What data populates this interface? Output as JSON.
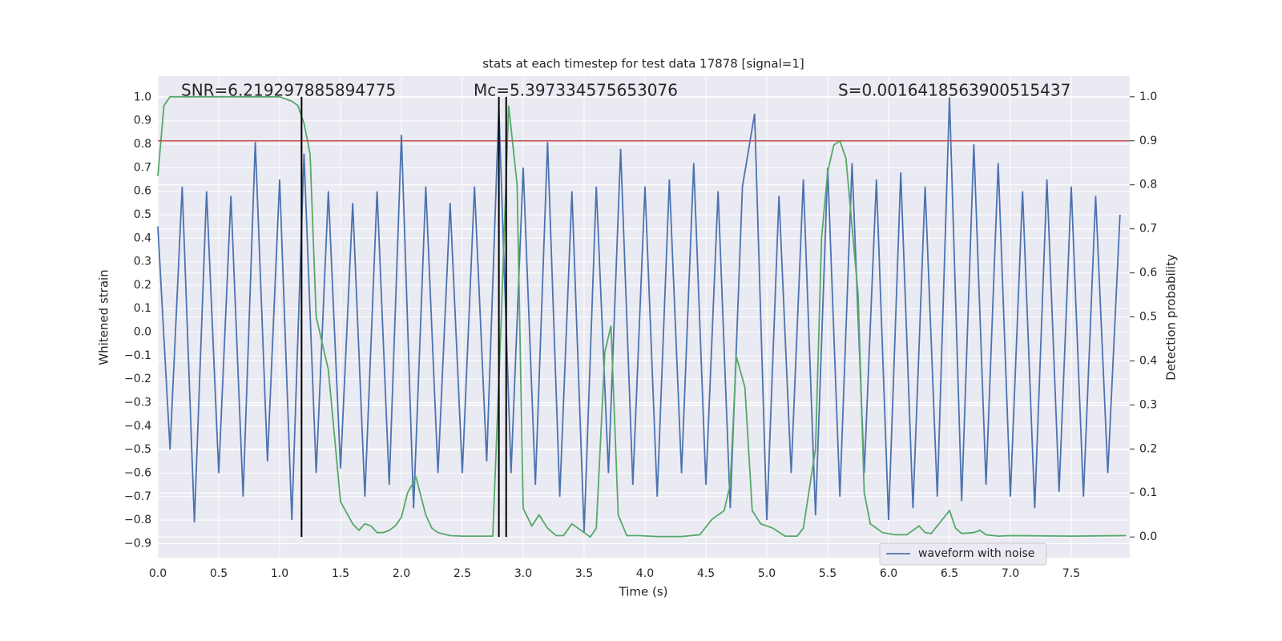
{
  "chart_data": {
    "type": "line",
    "title": "stats at each timestep for test data 17878 [signal=1]",
    "xlabel": "Time (s)",
    "ylabel": "Whitened strain",
    "y2label": "Detection probability",
    "annotations": [
      "SNR=6.219297885894775",
      "Mc=5.397334575653076",
      "S=0.0016418563900515437"
    ],
    "xlim": [
      0,
      7.98
    ],
    "ylim": [
      -0.96,
      1.09
    ],
    "y2lim": [
      -0.047,
      1.047
    ],
    "xticks": [
      {
        "value": 0,
        "label": "0.0"
      },
      0.5,
      {
        "value": 1,
        "label": "1.0"
      },
      1.5,
      {
        "value": 2,
        "label": "2.0"
      },
      2.5,
      {
        "value": 3,
        "label": "3.0"
      },
      3.5,
      {
        "value": 4,
        "label": "4.0"
      },
      4.5,
      {
        "value": 5,
        "label": "5.0"
      },
      5.5,
      {
        "value": 6,
        "label": "6.0"
      },
      6.5,
      {
        "value": 7,
        "label": "7.0"
      },
      7.5
    ],
    "yticks": [
      {
        "value": -0.9,
        "label": "−0.9"
      },
      {
        "value": -0.8,
        "label": "−0.8"
      },
      {
        "value": -0.7,
        "label": "−0.7"
      },
      {
        "value": -0.6,
        "label": "−0.6"
      },
      {
        "value": -0.5,
        "label": "−0.5"
      },
      {
        "value": -0.4,
        "label": "−0.4"
      },
      {
        "value": -0.3,
        "label": "−0.3"
      },
      {
        "value": -0.2,
        "label": "−0.2"
      },
      {
        "value": -0.1,
        "label": "−0.1"
      },
      {
        "value": 0,
        "label": "0.0"
      },
      0.1,
      0.2,
      0.3,
      0.4,
      0.5,
      0.6,
      0.7,
      0.8,
      0.9,
      {
        "value": 1,
        "label": "1.0"
      }
    ],
    "y2ticks": [
      {
        "value": 0,
        "label": "0.0"
      },
      0.1,
      0.2,
      0.3,
      0.4,
      0.5,
      0.6,
      0.7,
      0.8,
      0.9,
      {
        "value": 1,
        "label": "1.0"
      }
    ],
    "grid": true,
    "legend": "lower right",
    "hlines": [
      {
        "value": 0.9,
        "axis": "y2",
        "color": "#c44e52"
      }
    ],
    "vlines": {
      "x": [
        1.18,
        2.8,
        2.86
      ],
      "span": [
        0,
        1
      ],
      "axis": "y2",
      "color": "#000000"
    },
    "series": [
      {
        "name": "waveform with noise",
        "color": "#4c72b0",
        "x": [
          0.0,
          0.1,
          0.2,
          0.3,
          0.4,
          0.5,
          0.6,
          0.7,
          0.8,
          0.9,
          1.0,
          1.1,
          1.2,
          1.3,
          1.4,
          1.5,
          1.6,
          1.7,
          1.8,
          1.9,
          2.0,
          2.1,
          2.2,
          2.3,
          2.4,
          2.5,
          2.6,
          2.7,
          2.8,
          2.9,
          3.0,
          3.1,
          3.2,
          3.3,
          3.4,
          3.5,
          3.6,
          3.7,
          3.8,
          3.9,
          4.0,
          4.1,
          4.2,
          4.3,
          4.4,
          4.5,
          4.6,
          4.7,
          4.8,
          4.9,
          5.0,
          5.1,
          5.2,
          5.3,
          5.4,
          5.5,
          5.6,
          5.7,
          5.8,
          5.9,
          6.0,
          6.1,
          6.2,
          6.3,
          6.4,
          6.5,
          6.6,
          6.7,
          6.8,
          6.9,
          7.0,
          7.1,
          7.2,
          7.3,
          7.4,
          7.5,
          7.6,
          7.7,
          7.8,
          7.9
        ],
        "values": [
          0.45,
          -0.5,
          0.62,
          -0.81,
          0.6,
          -0.6,
          0.58,
          -0.7,
          0.81,
          -0.55,
          0.65,
          -0.8,
          0.76,
          -0.6,
          0.6,
          -0.58,
          0.55,
          -0.7,
          0.6,
          -0.65,
          0.84,
          -0.75,
          0.62,
          -0.6,
          0.55,
          -0.6,
          0.62,
          -0.55,
          0.96,
          -0.6,
          0.7,
          -0.65,
          0.81,
          -0.7,
          0.6,
          -0.85,
          0.62,
          -0.6,
          0.78,
          -0.65,
          0.62,
          -0.7,
          0.65,
          -0.6,
          0.72,
          -0.65,
          0.6,
          -0.75,
          0.62,
          0.93,
          -0.8,
          0.58,
          -0.6,
          0.65,
          -0.78,
          0.7,
          -0.7,
          0.72,
          -0.6,
          0.65,
          -0.8,
          0.68,
          -0.75,
          0.62,
          -0.7,
          1.0,
          -0.72,
          0.8,
          -0.65,
          0.72,
          -0.7,
          0.6,
          -0.75,
          0.65,
          -0.68,
          0.62,
          -0.7,
          0.58,
          -0.6,
          0.5
        ]
      },
      {
        "color": "#55a868",
        "axis": "y2",
        "x": [
          0.0,
          0.05,
          0.1,
          1.0,
          1.1,
          1.15,
          1.2,
          1.25,
          1.3,
          1.4,
          1.5,
          1.6,
          1.65,
          1.7,
          1.75,
          1.8,
          1.85,
          1.9,
          1.95,
          2.0,
          2.05,
          2.12,
          2.2,
          2.25,
          2.3,
          2.4,
          2.5,
          2.6,
          2.75,
          2.82,
          2.88,
          2.95,
          3.0,
          3.07,
          3.13,
          3.2,
          3.27,
          3.33,
          3.4,
          3.5,
          3.55,
          3.6,
          3.67,
          3.72,
          3.78,
          3.85,
          3.95,
          4.1,
          4.3,
          4.45,
          4.55,
          4.65,
          4.7,
          4.75,
          4.82,
          4.88,
          4.95,
          5.05,
          5.15,
          5.25,
          5.3,
          5.4,
          5.45,
          5.5,
          5.55,
          5.6,
          5.65,
          5.75,
          5.8,
          5.85,
          5.95,
          6.05,
          6.15,
          6.25,
          6.3,
          6.35,
          6.5,
          6.55,
          6.6,
          6.7,
          6.75,
          6.8,
          6.9,
          7.0,
          7.5,
          7.95
        ],
        "values": [
          0.82,
          0.98,
          1.0,
          1.0,
          0.99,
          0.98,
          0.94,
          0.87,
          0.5,
          0.38,
          0.08,
          0.03,
          0.015,
          0.03,
          0.025,
          0.01,
          0.01,
          0.015,
          0.025,
          0.045,
          0.1,
          0.135,
          0.05,
          0.02,
          0.01,
          0.003,
          0.002,
          0.002,
          0.002,
          0.5,
          0.98,
          0.8,
          0.065,
          0.025,
          0.05,
          0.02,
          0.003,
          0.003,
          0.03,
          0.01,
          0.0,
          0.02,
          0.42,
          0.48,
          0.05,
          0.003,
          0.003,
          0.001,
          0.001,
          0.005,
          0.04,
          0.06,
          0.12,
          0.41,
          0.34,
          0.06,
          0.03,
          0.02,
          0.002,
          0.002,
          0.02,
          0.2,
          0.68,
          0.83,
          0.89,
          0.9,
          0.86,
          0.55,
          0.1,
          0.03,
          0.01,
          0.005,
          0.005,
          0.025,
          0.01,
          0.008,
          0.06,
          0.02,
          0.008,
          0.01,
          0.015,
          0.005,
          0.002,
          0.003,
          0.002,
          0.003
        ]
      }
    ]
  }
}
